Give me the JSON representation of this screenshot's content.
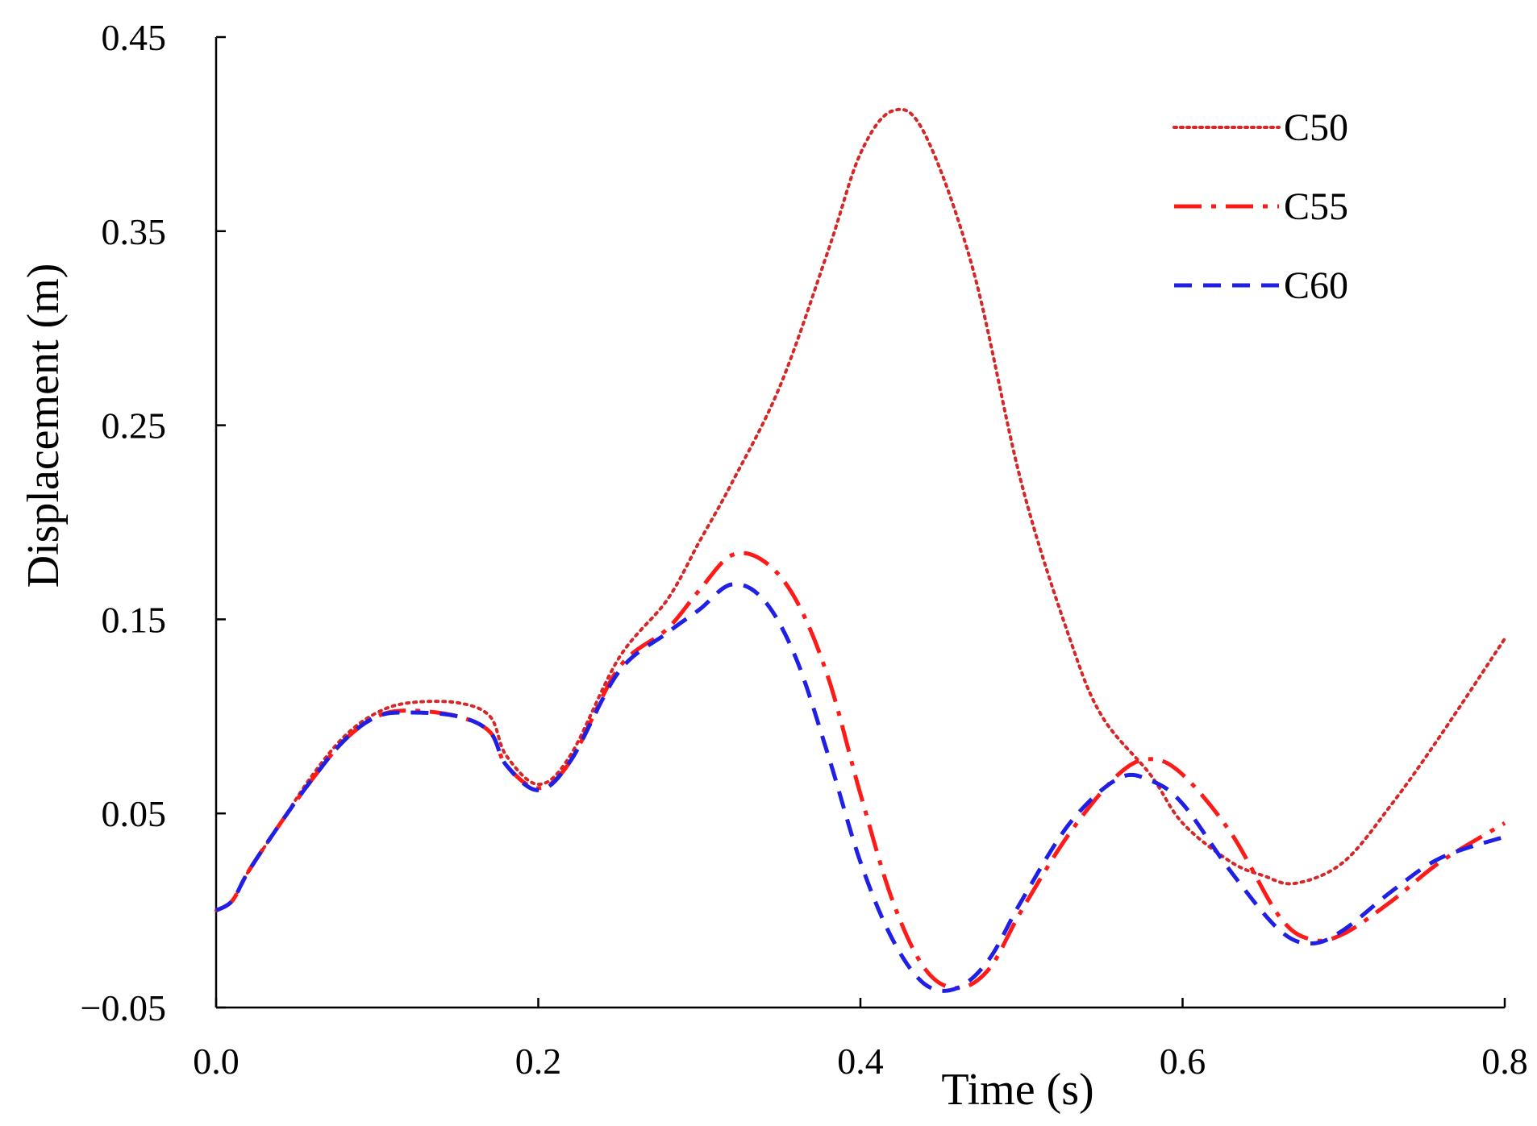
{
  "chart_data": {
    "type": "line",
    "title": "",
    "xlabel": "Time (s)",
    "ylabel": "Displacement (m)",
    "xlim": [
      0.0,
      0.8
    ],
    "ylim": [
      -0.05,
      0.45
    ],
    "x_ticks": [
      0.0,
      0.2,
      0.4,
      0.6,
      0.8
    ],
    "x_tick_labels": [
      "0.0",
      "0.2",
      "0.4",
      "0.6",
      "0.8"
    ],
    "y_ticks": [
      -0.05,
      0.05,
      0.15,
      0.25,
      0.35,
      0.45
    ],
    "y_tick_labels": [
      "−0.05",
      "0.05",
      "0.15",
      "0.25",
      "0.35",
      "0.45"
    ],
    "grid": false,
    "legend_position": "top-right",
    "series": [
      {
        "name": "C50",
        "color": "#d62728",
        "style": "dotted",
        "x": [
          0.0,
          0.01,
          0.02,
          0.04,
          0.06,
          0.08,
          0.1,
          0.12,
          0.15,
          0.17,
          0.18,
          0.2,
          0.22,
          0.25,
          0.28,
          0.3,
          0.32,
          0.35,
          0.38,
          0.4,
          0.42,
          0.44,
          0.47,
          0.5,
          0.53,
          0.55,
          0.58,
          0.6,
          0.63,
          0.65,
          0.67,
          0.7,
          0.73,
          0.76,
          0.8
        ],
        "y": [
          0.0,
          0.005,
          0.02,
          0.045,
          0.07,
          0.09,
          0.102,
          0.107,
          0.107,
          0.1,
          0.08,
          0.065,
          0.08,
          0.13,
          0.16,
          0.19,
          0.22,
          0.27,
          0.34,
          0.39,
          0.412,
          0.4,
          0.33,
          0.22,
          0.14,
          0.1,
          0.07,
          0.045,
          0.025,
          0.018,
          0.014,
          0.025,
          0.055,
          0.09,
          0.14
        ]
      },
      {
        "name": "C55",
        "color": "#ff1a1a",
        "style": "dash-dot",
        "x": [
          0.0,
          0.01,
          0.02,
          0.04,
          0.06,
          0.08,
          0.1,
          0.12,
          0.15,
          0.17,
          0.18,
          0.2,
          0.22,
          0.25,
          0.28,
          0.3,
          0.32,
          0.34,
          0.36,
          0.38,
          0.4,
          0.42,
          0.44,
          0.46,
          0.48,
          0.5,
          0.53,
          0.56,
          0.58,
          0.6,
          0.63,
          0.66,
          0.68,
          0.7,
          0.73,
          0.76,
          0.8
        ],
        "y": [
          0.0,
          0.005,
          0.02,
          0.045,
          0.068,
          0.088,
          0.1,
          0.103,
          0.1,
          0.092,
          0.075,
          0.063,
          0.077,
          0.125,
          0.145,
          0.165,
          0.183,
          0.18,
          0.16,
          0.12,
          0.06,
          0.005,
          -0.03,
          -0.04,
          -0.03,
          0.0,
          0.04,
          0.07,
          0.078,
          0.07,
          0.04,
          -0.003,
          -0.015,
          -0.012,
          0.005,
          0.025,
          0.045
        ]
      },
      {
        "name": "C60",
        "color": "#1f1fe6",
        "style": "dashed",
        "x": [
          0.0,
          0.01,
          0.02,
          0.04,
          0.06,
          0.08,
          0.1,
          0.12,
          0.15,
          0.17,
          0.18,
          0.2,
          0.22,
          0.25,
          0.28,
          0.3,
          0.32,
          0.34,
          0.36,
          0.38,
          0.4,
          0.42,
          0.44,
          0.46,
          0.48,
          0.5,
          0.53,
          0.56,
          0.58,
          0.6,
          0.63,
          0.66,
          0.68,
          0.7,
          0.73,
          0.76,
          0.8
        ],
        "y": [
          0.0,
          0.005,
          0.02,
          0.045,
          0.068,
          0.088,
          0.1,
          0.102,
          0.1,
          0.092,
          0.075,
          0.062,
          0.077,
          0.123,
          0.143,
          0.155,
          0.168,
          0.16,
          0.13,
          0.08,
          0.025,
          -0.015,
          -0.038,
          -0.04,
          -0.025,
          0.005,
          0.045,
          0.068,
          0.067,
          0.055,
          0.02,
          -0.01,
          -0.017,
          -0.01,
          0.01,
          0.027,
          0.038
        ]
      }
    ]
  }
}
